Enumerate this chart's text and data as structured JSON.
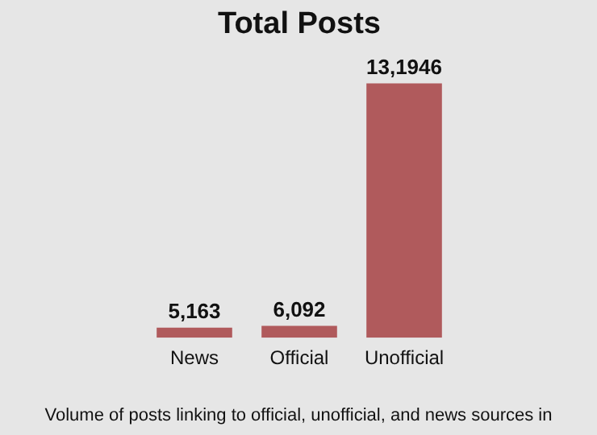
{
  "chart_data": {
    "type": "bar",
    "title": "Total Posts",
    "categories": [
      "News",
      "Official",
      "Unofficial"
    ],
    "values": [
      5163,
      6092,
      131946
    ],
    "color": "#b05a5c",
    "value_labels": [
      "5,163",
      "6,092",
      "13,1946"
    ],
    "tick_labels": "x",
    "grid": false,
    "legend": false,
    "annotations": [
      "Volume of posts linking to official, unofficial, and news sources in"
    ]
  }
}
